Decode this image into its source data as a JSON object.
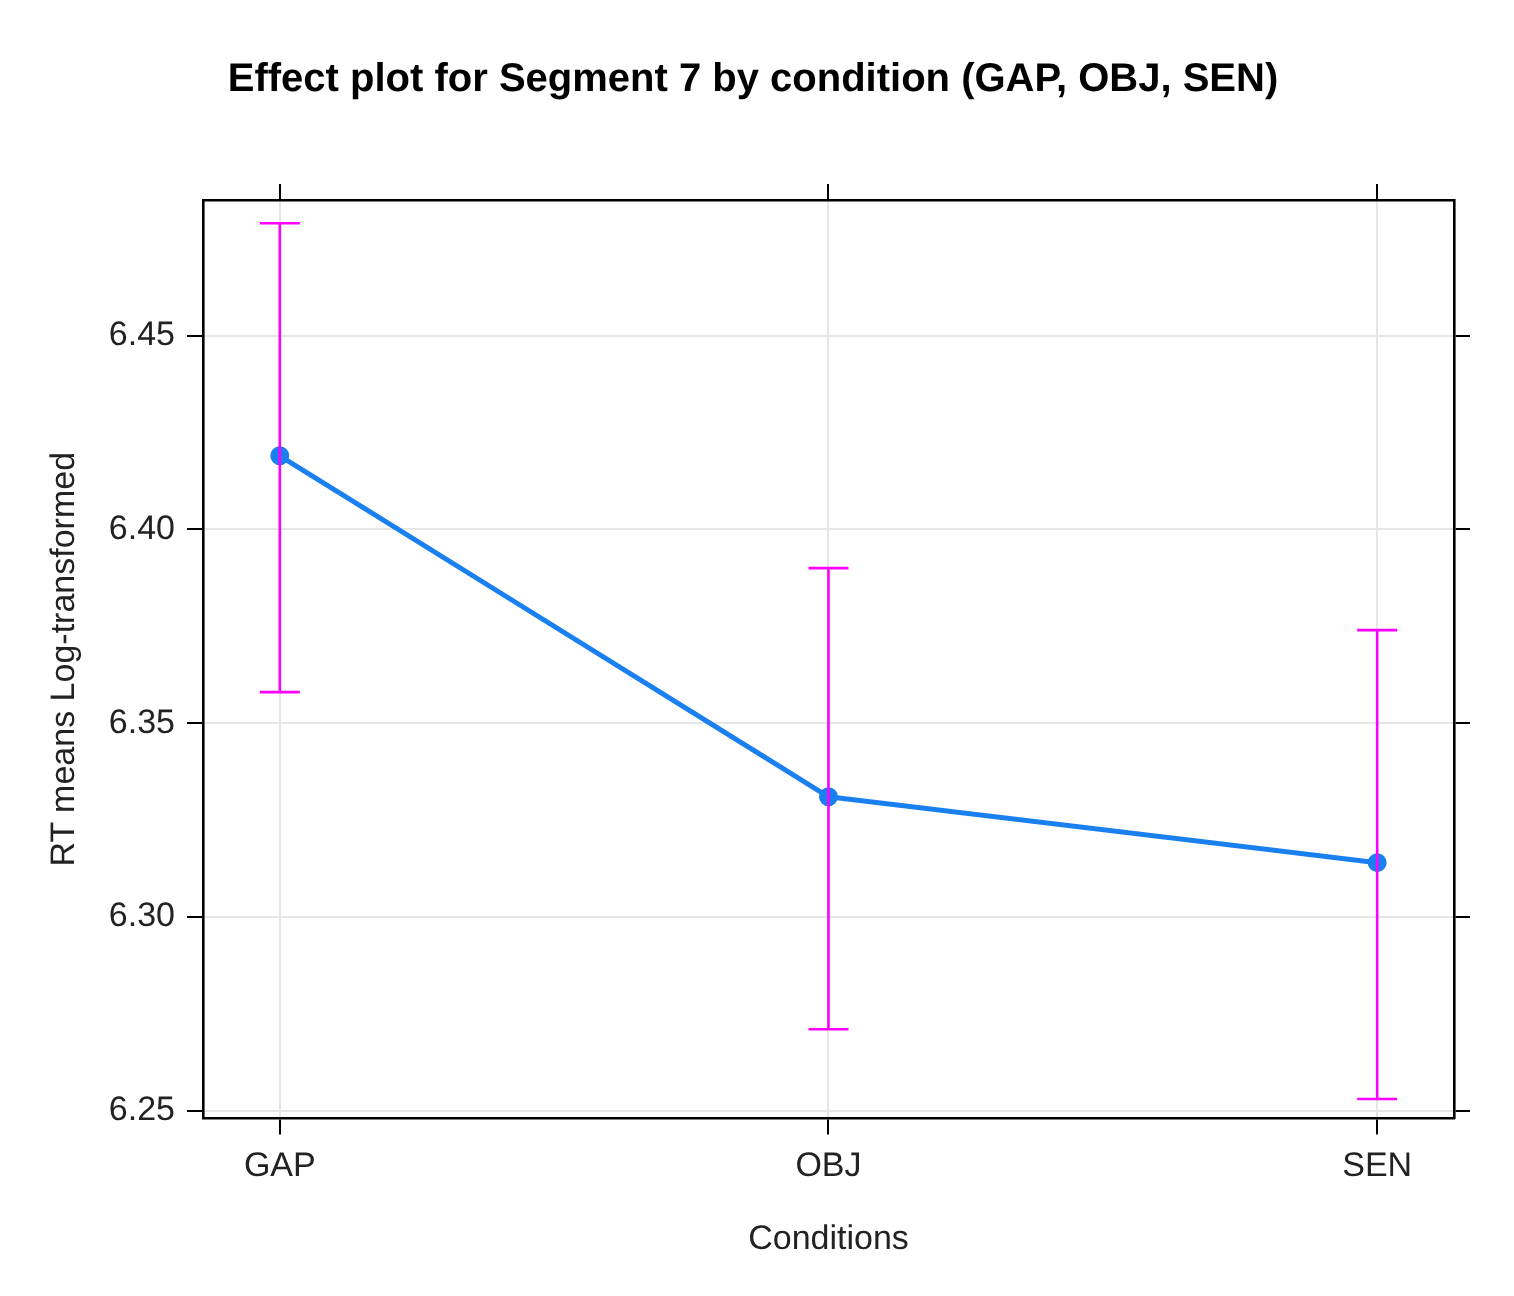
{
  "chart_data": {
    "type": "line",
    "title": "Effect plot for Segment 7 by condition (GAP, OBJ, SEN)",
    "xlabel": "Conditions",
    "ylabel": "RT means Log-transformed",
    "categories": [
      "GAP",
      "OBJ",
      "SEN"
    ],
    "series": [
      {
        "color": "#1a80f0",
        "values": [
          6.419,
          6.331,
          6.314
        ],
        "errors": [
          [
            6.358,
            6.479
          ],
          [
            6.271,
            6.39
          ],
          [
            6.253,
            6.374
          ]
        ]
      }
    ],
    "ylim": [
      6.248,
      6.485
    ],
    "yticks": [
      6.25,
      {
        "value": 6.3,
        "label": "6.30"
      },
      6.35,
      {
        "value": 6.4,
        "label": "6.40"
      },
      6.45
    ],
    "grid": true,
    "marker": "circle",
    "line_style": "solid"
  }
}
